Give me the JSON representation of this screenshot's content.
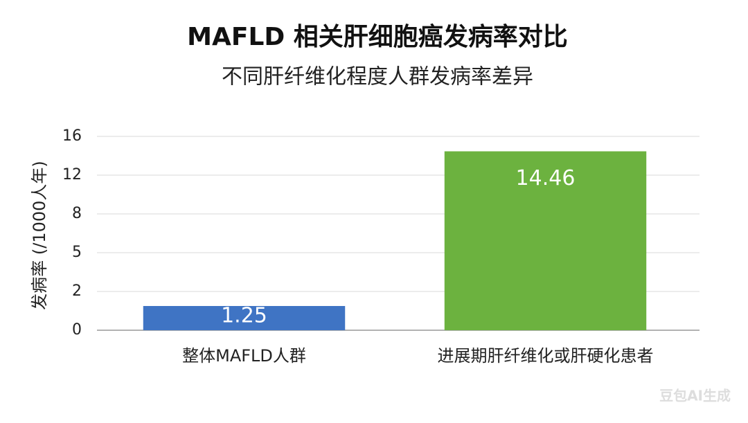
{
  "chart_data": {
    "type": "bar",
    "title": "MAFLD 相关肝细胞癌发病率对比",
    "subtitle": "不同肝纤维化程度人群发病率差异",
    "y_label": "发病率 (/1000人年)",
    "categories": [
      "整体MAFLD人群",
      "进展期肝纤维化或肝硬化患者"
    ],
    "values": [
      1.25,
      14.46
    ],
    "colors": [
      "#3f74c4",
      "#6cb23f"
    ],
    "ylim": [
      0,
      16
    ],
    "yticks": [
      0,
      2,
      5,
      8,
      12,
      16
    ],
    "grid": true
  },
  "watermark": "豆包AI生成"
}
